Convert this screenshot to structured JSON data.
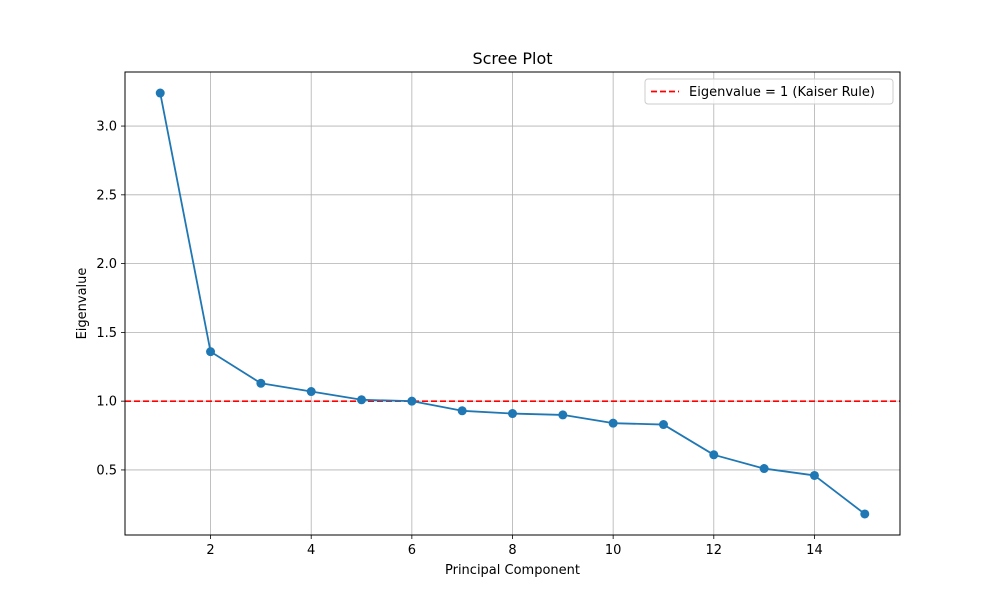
{
  "chart_data": {
    "type": "line",
    "title": "Scree Plot",
    "xlabel": "Principal Component",
    "ylabel": "Eigenvalue",
    "x": [
      1,
      2,
      3,
      4,
      5,
      6,
      7,
      8,
      9,
      10,
      11,
      12,
      13,
      14,
      15
    ],
    "series": [
      {
        "values": [
          3.24,
          1.36,
          1.13,
          1.07,
          1.01,
          1.0,
          0.93,
          0.91,
          0.9,
          0.84,
          0.83,
          0.61,
          0.51,
          0.46,
          0.18
        ],
        "color": "#1f77b4",
        "marker": "circle"
      }
    ],
    "reference_line": {
      "y": 1.0,
      "label": "Eigenvalue = 1 (Kaiser Rule)",
      "color": "#ff0000",
      "style": "dashed"
    },
    "xlim": [
      0.3,
      15.7
    ],
    "ylim": [
      0.027,
      3.393
    ],
    "xticks": [
      2,
      4,
      6,
      8,
      10,
      12,
      14
    ],
    "yticks": [
      0.5,
      1.0,
      1.5,
      2.0,
      2.5,
      3.0
    ],
    "ytick_labels": [
      "0.5",
      "1.0",
      "1.5",
      "2.0",
      "2.5",
      "3.0"
    ],
    "grid": true,
    "legend_position": "top-right"
  }
}
